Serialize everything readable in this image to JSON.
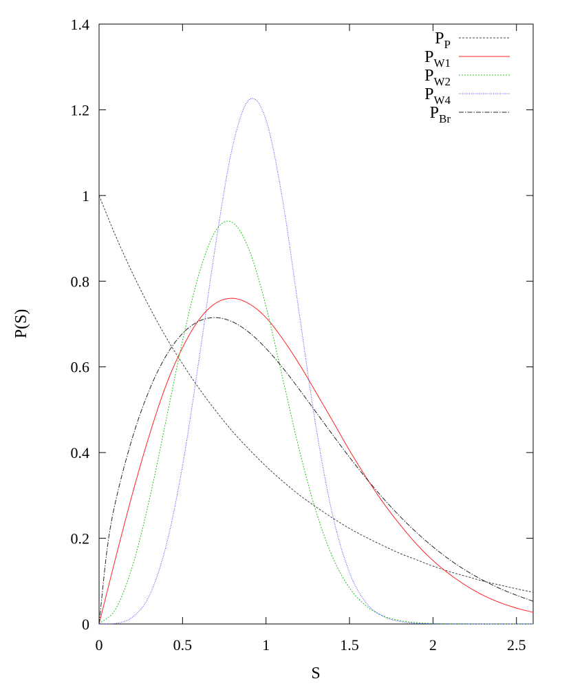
{
  "chart_data": {
    "type": "line",
    "title": "",
    "xlabel": "S",
    "ylabel": "P(S)",
    "xlim": [
      0,
      2.6
    ],
    "ylim": [
      0,
      1.4
    ],
    "x_ticks": [
      0,
      0.5,
      1,
      1.5,
      2,
      2.5
    ],
    "x_tick_labels": [
      "0",
      "0.5",
      "1",
      "1.5",
      "2",
      "2.5"
    ],
    "y_ticks": [
      0,
      0.2,
      0.4,
      0.6,
      0.8,
      1,
      1.2,
      1.4
    ],
    "y_tick_labels": [
      "0",
      "0.2",
      "0.4",
      "0.6",
      "0.8",
      "1",
      "1.2",
      "1.4"
    ],
    "grid": false,
    "legend_position": "top-right",
    "series": [
      {
        "name": "PP",
        "legend_main": "P",
        "legend_sub": "P",
        "color": "#404040",
        "dash": "3,2",
        "x": [
          0,
          0.1,
          0.2,
          0.3,
          0.4,
          0.5,
          0.6,
          0.7,
          0.8,
          0.9,
          1.0,
          1.1,
          1.2,
          1.3,
          1.4,
          1.5,
          1.6,
          1.7,
          1.8,
          1.9,
          2.0,
          2.1,
          2.2,
          2.3,
          2.4,
          2.5,
          2.6
        ],
        "y": [
          1.0,
          0.905,
          0.819,
          0.741,
          0.67,
          0.607,
          0.549,
          0.497,
          0.449,
          0.407,
          0.368,
          0.333,
          0.301,
          0.273,
          0.247,
          0.223,
          0.202,
          0.183,
          0.165,
          0.15,
          0.135,
          0.122,
          0.111,
          0.1,
          0.091,
          0.082,
          0.074
        ]
      },
      {
        "name": "PW1",
        "legend_main": "P",
        "legend_sub": "W1",
        "color": "#ff2020",
        "dash": "",
        "x": [
          0,
          0.1,
          0.2,
          0.3,
          0.4,
          0.5,
          0.6,
          0.7,
          0.8,
          0.9,
          1.0,
          1.1,
          1.2,
          1.3,
          1.4,
          1.5,
          1.6,
          1.7,
          1.8,
          1.9,
          2.0,
          2.1,
          2.2,
          2.3,
          2.4,
          2.5,
          2.6
        ],
        "y": [
          0.0,
          0.155,
          0.304,
          0.439,
          0.556,
          0.645,
          0.711,
          0.749,
          0.76,
          0.747,
          0.715,
          0.665,
          0.606,
          0.54,
          0.473,
          0.405,
          0.342,
          0.284,
          0.233,
          0.187,
          0.148,
          0.116,
          0.089,
          0.067,
          0.05,
          0.037,
          0.027
        ]
      },
      {
        "name": "PW2",
        "legend_main": "P",
        "legend_sub": "W2",
        "color": "#20c020",
        "dash": "2,2",
        "x": [
          0,
          0.1,
          0.2,
          0.3,
          0.4,
          0.5,
          0.6,
          0.7,
          0.8,
          0.9,
          1.0,
          1.1,
          1.2,
          1.3,
          1.4,
          1.5,
          1.6,
          1.7,
          1.8,
          1.9,
          2.0,
          2.1,
          2.2,
          2.3,
          2.4,
          2.5,
          2.6
        ],
        "y": [
          0.0,
          0.035,
          0.135,
          0.288,
          0.473,
          0.661,
          0.819,
          0.919,
          0.937,
          0.872,
          0.741,
          0.573,
          0.405,
          0.262,
          0.155,
          0.084,
          0.042,
          0.019,
          0.008,
          0.003,
          0.001,
          0.0003,
          0.0001,
          0.0,
          0.0,
          0.0,
          0.0
        ]
      },
      {
        "name": "PW4",
        "legend_main": "P",
        "legend_sub": "W4",
        "color": "#4040ff",
        "dash": "1,1.5",
        "x": [
          0,
          0.1,
          0.2,
          0.3,
          0.4,
          0.5,
          0.6,
          0.7,
          0.8,
          0.9,
          1.0,
          1.1,
          1.2,
          1.3,
          1.4,
          1.5,
          1.6,
          1.7,
          1.8,
          1.9,
          2.0,
          2.1,
          2.2,
          2.3,
          2.4,
          2.5,
          2.6
        ],
        "y": [
          0.0,
          0.0012,
          0.016,
          0.065,
          0.18,
          0.369,
          0.621,
          0.89,
          1.115,
          1.224,
          1.177,
          0.988,
          0.722,
          0.458,
          0.252,
          0.12,
          0.049,
          0.018,
          0.006,
          0.0015,
          0.0004,
          0.0001,
          0.0,
          0.0,
          0.0,
          0.0,
          0.0
        ]
      },
      {
        "name": "PBr",
        "legend_main": "P",
        "legend_sub": "Br",
        "color": "#202020",
        "dash": "7,2,1.5,2",
        "x": [
          0,
          0.05,
          0.1,
          0.2,
          0.3,
          0.4,
          0.5,
          0.6,
          0.7,
          0.8,
          0.9,
          1.0,
          1.1,
          1.2,
          1.3,
          1.4,
          1.5,
          1.6,
          1.7,
          1.8,
          1.9,
          2.0,
          2.1,
          2.2,
          2.3,
          2.4,
          2.5,
          2.6
        ],
        "y": [
          0.0,
          0.18,
          0.288,
          0.435,
          0.545,
          0.625,
          0.678,
          0.707,
          0.715,
          0.705,
          0.68,
          0.643,
          0.598,
          0.547,
          0.494,
          0.441,
          0.389,
          0.34,
          0.294,
          0.252,
          0.214,
          0.18,
          0.15,
          0.124,
          0.102,
          0.083,
          0.067,
          0.053
        ]
      }
    ]
  }
}
